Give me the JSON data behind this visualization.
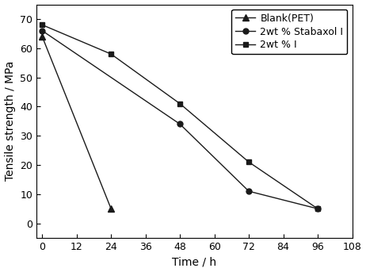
{
  "series": [
    {
      "label": "Blank(PET)",
      "x": [
        0,
        24
      ],
      "y": [
        64,
        5
      ],
      "marker": "^",
      "color": "#1a1a1a",
      "linestyle": "-",
      "markersize": 6,
      "zorder": 3
    },
    {
      "label": "2wt % Stabaxol I",
      "x": [
        0,
        48,
        72,
        96
      ],
      "y": [
        66,
        34,
        11,
        5
      ],
      "marker": "o",
      "color": "#1a1a1a",
      "linestyle": "-",
      "markersize": 5,
      "zorder": 3
    },
    {
      "label": "2wt % I",
      "x": [
        0,
        24,
        48,
        72,
        96
      ],
      "y": [
        68,
        58,
        41,
        21,
        5
      ],
      "marker": "s",
      "color": "#1a1a1a",
      "linestyle": "-",
      "markersize": 5,
      "zorder": 3
    }
  ],
  "xlabel": "Time / h",
  "ylabel": "Tensile strength / MPa",
  "xlim": [
    -2,
    108
  ],
  "ylim": [
    -5,
    75
  ],
  "xticks": [
    0,
    12,
    24,
    36,
    48,
    60,
    72,
    84,
    96,
    108
  ],
  "yticks": [
    0,
    10,
    20,
    30,
    40,
    50,
    60,
    70
  ],
  "legend_loc": "upper right",
  "background_color": "#ffffff",
  "plot_bg_color": "#ffffff",
  "font_size": 9,
  "label_font_size": 10
}
